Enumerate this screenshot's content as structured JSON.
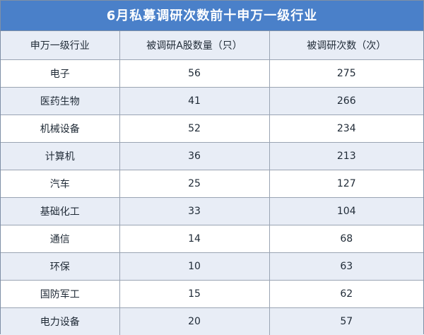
{
  "title": "6月私募调研次数前十申万一级行业",
  "columns": [
    "申万一级行业",
    "被调研A股数量（只）",
    "被调研次数（次）"
  ],
  "rows": [
    [
      "电子",
      "56",
      "275"
    ],
    [
      "医药生物",
      "41",
      "266"
    ],
    [
      "机械设备",
      "52",
      "234"
    ],
    [
      "计算机",
      "36",
      "213"
    ],
    [
      "汽车",
      "25",
      "127"
    ],
    [
      "基础化工",
      "33",
      "104"
    ],
    [
      "通信",
      "14",
      "68"
    ],
    [
      "环保",
      "10",
      "63"
    ],
    [
      "国防军工",
      "15",
      "62"
    ],
    [
      "电力设备",
      "20",
      "57"
    ]
  ],
  "colors": {
    "header_bg": "#4a80c9",
    "stripe_bg": "#e8edf6",
    "border": "#9aa4b3"
  }
}
